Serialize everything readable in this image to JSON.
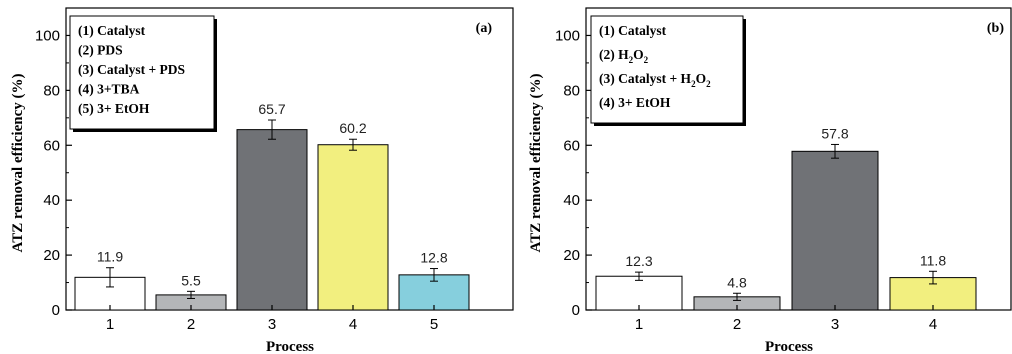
{
  "chart_data": [
    {
      "type": "bar",
      "panel": "(a)",
      "categories": [
        "1",
        "2",
        "3",
        "4",
        "5"
      ],
      "values": [
        11.9,
        5.5,
        65.7,
        60.2,
        12.8
      ],
      "errors": [
        3.5,
        1.3,
        3.5,
        2.0,
        2.3
      ],
      "value_labels": [
        "11.9",
        "5.5",
        "65.7",
        "60.2",
        "12.8"
      ],
      "colors": [
        "#ffffff",
        "#b4b6b8",
        "#707276",
        "#f2ef7f",
        "#86cfdd"
      ],
      "legend": [
        "(1) Catalyst",
        "(2) PDS",
        "(3) Catalyst + PDS",
        "(4) 3+TBA",
        "(5) 3+ EtOH"
      ],
      "xlabel": "Process",
      "ylabel": "ATZ removal efficiency (%)",
      "ylim": [
        0,
        110
      ],
      "yticks": [
        "0",
        "20",
        "40",
        "60",
        "80",
        "100"
      ],
      "legend_position": "top-left",
      "grid": false
    },
    {
      "type": "bar",
      "panel": "(b)",
      "categories": [
        "1",
        "2",
        "3",
        "4"
      ],
      "values": [
        12.3,
        4.8,
        57.8,
        11.8
      ],
      "errors": [
        1.5,
        1.3,
        2.5,
        2.3
      ],
      "value_labels": [
        "12.3",
        "4.8",
        "57.8",
        "11.8"
      ],
      "colors": [
        "#ffffff",
        "#b4b6b8",
        "#707276",
        "#f2ef7f"
      ],
      "legend": [
        {
          "parts": [
            [
              "(1) Catalyst",
              ""
            ]
          ]
        },
        {
          "parts": [
            [
              "(2) H",
              ""
            ],
            [
              "2",
              "sub"
            ],
            [
              "O",
              ""
            ],
            [
              "2",
              "sub"
            ]
          ]
        },
        {
          "parts": [
            [
              "(3) Catalyst + H",
              ""
            ],
            [
              "2",
              "sub"
            ],
            [
              "O",
              ""
            ],
            [
              "2",
              "sub"
            ]
          ]
        },
        {
          "parts": [
            [
              "(4) 3+ EtOH",
              ""
            ]
          ]
        }
      ],
      "xlabel": "Process",
      "ylabel": "ATZ removal efficiency (%)",
      "ylim": [
        0,
        110
      ],
      "yticks": [
        "0",
        "20",
        "40",
        "60",
        "80",
        "100"
      ],
      "legend_position": "top-left",
      "grid": false
    }
  ]
}
